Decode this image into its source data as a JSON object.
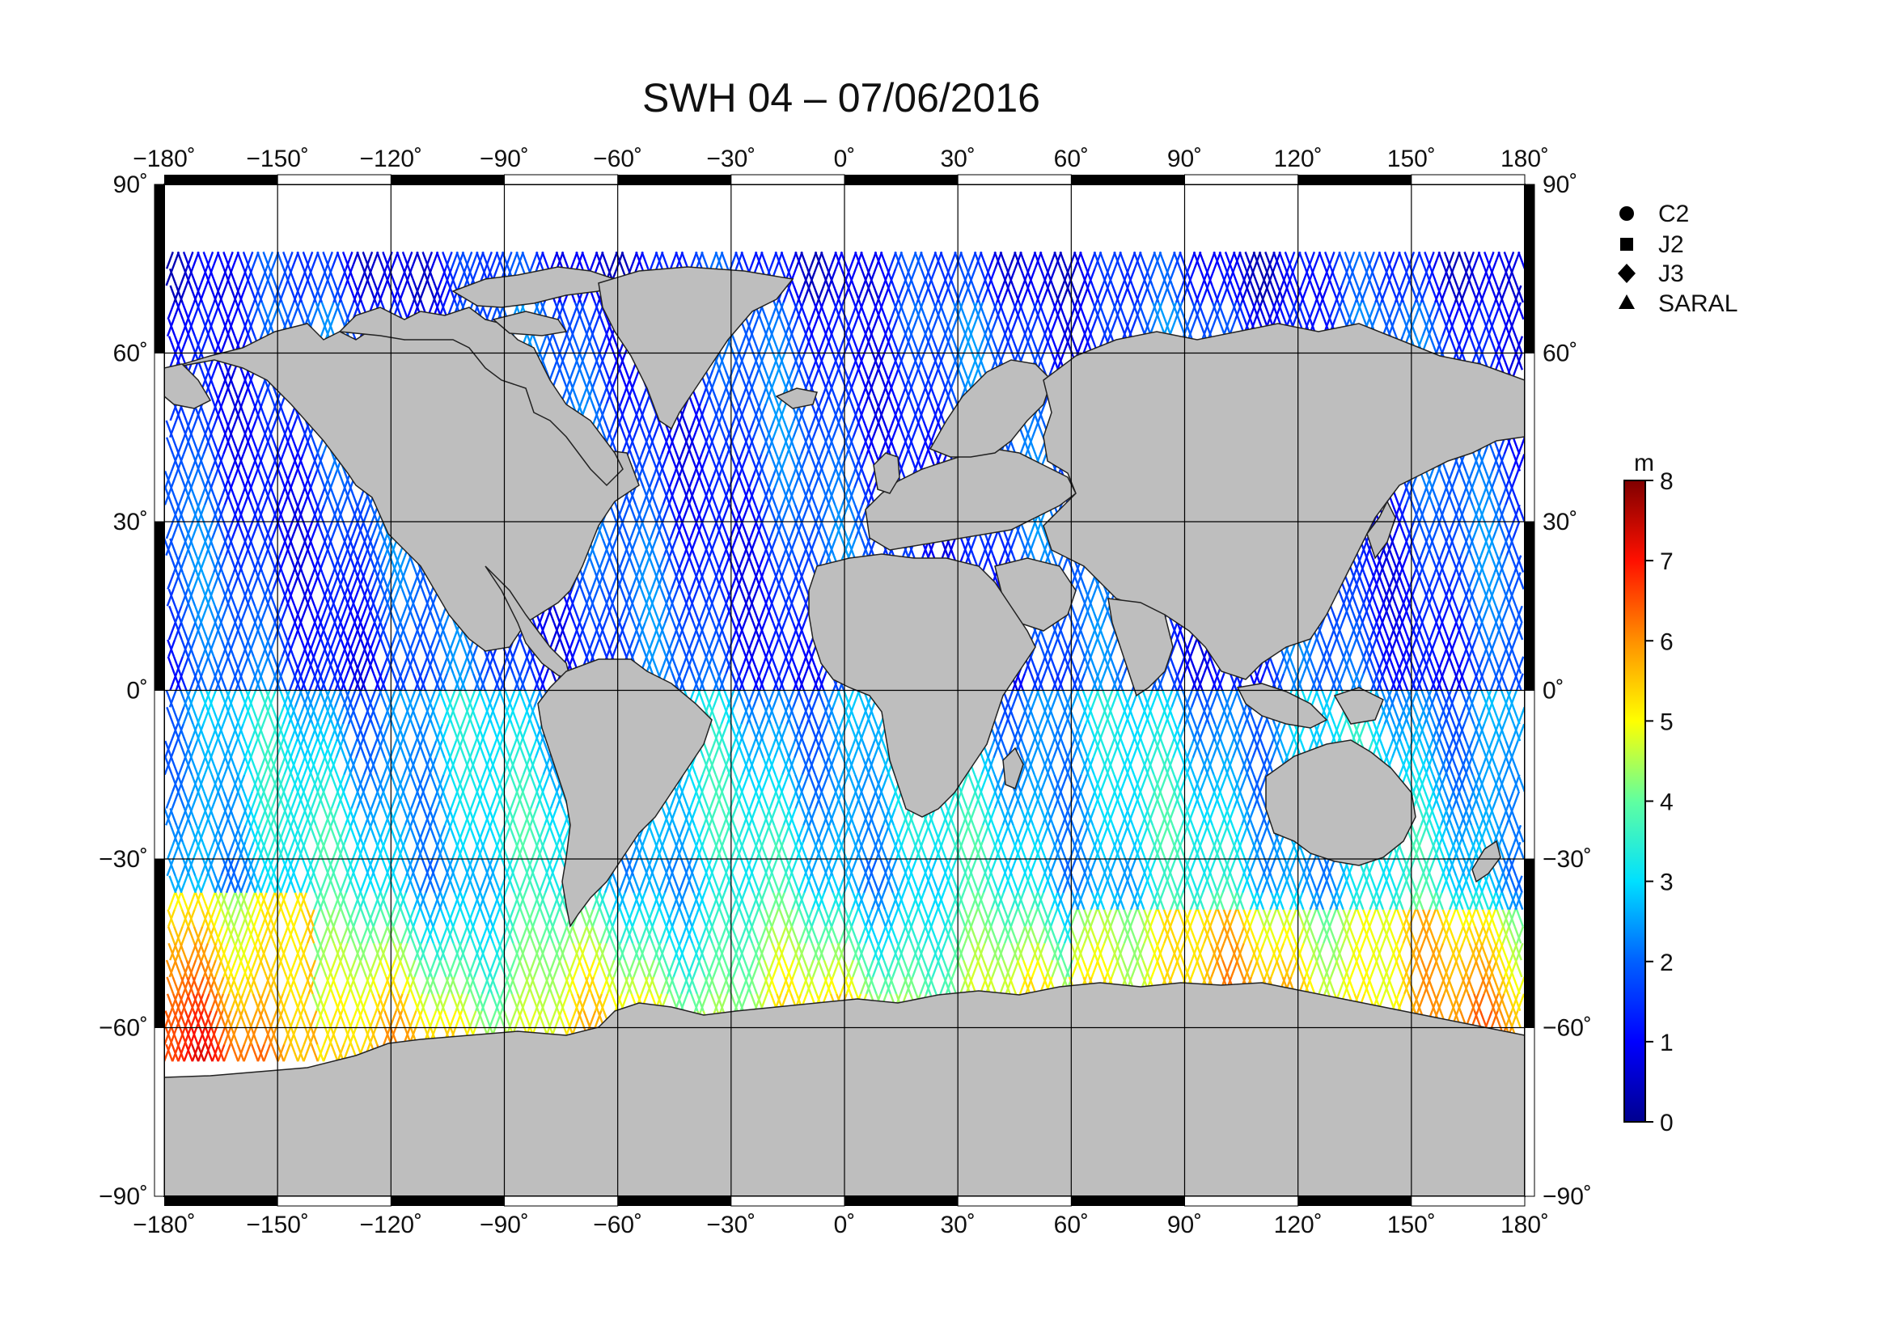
{
  "title": "SWH 04 – 07/06/2016",
  "map": {
    "projection": "equirectangular",
    "lon_ticks": [
      "−180˚",
      "−150˚",
      "−120˚",
      "−90˚",
      "−60˚",
      "−30˚",
      "0˚",
      "30˚",
      "60˚",
      "90˚",
      "120˚",
      "150˚",
      "180˚"
    ],
    "lat_ticks": [
      "90˚",
      "60˚",
      "30˚",
      "0˚",
      "−30˚",
      "−60˚",
      "−90˚"
    ],
    "lon_values": [
      -180,
      -150,
      -120,
      -90,
      -60,
      -30,
      0,
      30,
      60,
      90,
      120,
      150,
      180
    ],
    "lat_values": [
      90,
      60,
      30,
      0,
      -30,
      -60,
      -90
    ],
    "land_color": "#bebebe",
    "ocean_color": "#ffffff",
    "grid": true
  },
  "legend": {
    "items": [
      {
        "label": "C2",
        "symbol": "circle"
      },
      {
        "label": "J2",
        "symbol": "square"
      },
      {
        "label": "J3",
        "symbol": "diamond"
      },
      {
        "label": "SARAL",
        "symbol": "triangle"
      }
    ]
  },
  "colorbar": {
    "unit": "m",
    "min": 0,
    "max": 8,
    "ticks": [
      "0",
      "1",
      "2",
      "3",
      "4",
      "5",
      "6",
      "7",
      "8"
    ],
    "colormap": [
      "#00008f",
      "#0000ff",
      "#0080ff",
      "#00ffff",
      "#80ff80",
      "#ffff00",
      "#ff8000",
      "#ff0000",
      "#800000"
    ]
  },
  "chart_data": {
    "type": "scatter",
    "variable": "significant wave height",
    "unit": "m",
    "note_regions": [
      {
        "lon_range": [
          -180,
          -140
        ],
        "lat_range": [
          -65,
          -35
        ],
        "swh_m": 6.5
      },
      {
        "lon_range": [
          60,
          180
        ],
        "lat_range": [
          -62,
          -38
        ],
        "swh_m": 5.5
      },
      {
        "lon_range": [
          -180,
          180
        ],
        "lat_range": [
          -30,
          0
        ],
        "swh_m": 2.5
      },
      {
        "lon_range": [
          -180,
          180
        ],
        "lat_range": [
          0,
          70
        ],
        "swh_m": 1.2
      }
    ]
  }
}
